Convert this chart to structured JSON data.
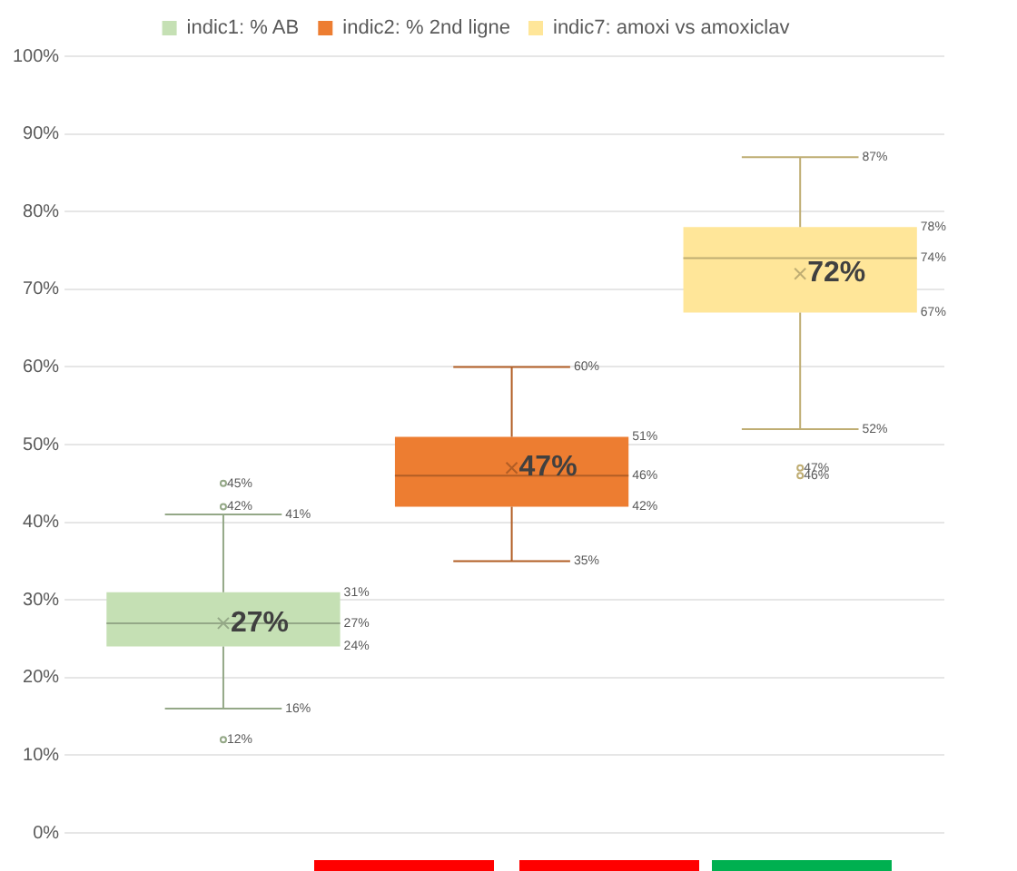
{
  "chart_data": {
    "type": "box",
    "categories": [
      null,
      null,
      null
    ],
    "series": [
      {
        "name": "indic1: % AB",
        "color": "#c5e0b4",
        "boxes": [
          {
            "low": 16,
            "q1": 24,
            "median": 27,
            "q3": 31,
            "high": 41,
            "mean": 27,
            "outliers": [
              45,
              42,
              12
            ]
          },
          null,
          null
        ]
      },
      {
        "name": "indic2: % 2nd ligne",
        "color": "#ed7d31",
        "boxes": [
          null,
          {
            "low": 35,
            "q1": 42,
            "median": 46,
            "q3": 51,
            "high": 60,
            "mean": 47
          },
          null
        ]
      },
      {
        "name": "indic7: amoxi vs amoxiclav",
        "color": "#ffe699",
        "boxes": [
          null,
          null,
          {
            "low": 52,
            "q1": 67,
            "median": 74,
            "q3": 78,
            "high": 87,
            "mean": 72,
            "outliers": [
              47,
              46
            ]
          }
        ]
      }
    ],
    "ylim": [
      0,
      100
    ],
    "yticks": [
      {
        "value": 0,
        "label": "0%"
      },
      {
        "value": 10,
        "label": "10%"
      },
      {
        "value": 20,
        "label": "20%"
      },
      {
        "value": 30,
        "label": "30%"
      },
      {
        "value": 40,
        "label": "40%"
      },
      {
        "value": 50,
        "label": "50%"
      },
      {
        "value": 60,
        "label": "60%"
      },
      {
        "value": 70,
        "label": "70%"
      },
      {
        "value": 80,
        "label": "80%"
      },
      {
        "value": 90,
        "label": "90%"
      },
      {
        "value": 100,
        "label": "100%"
      }
    ],
    "annotations": [
      "41%",
      "16%",
      "31%",
      "27%",
      "24%",
      "45%",
      "42%",
      "12%",
      "27%",
      "60%",
      "35%",
      "51%",
      "46%",
      "42%",
      "47%",
      "87%",
      "52%",
      "78%",
      "74%",
      "67%",
      "47%",
      "46%",
      "72%"
    ],
    "grid": "y",
    "legend": "top",
    "tick_labels": "y"
  }
}
